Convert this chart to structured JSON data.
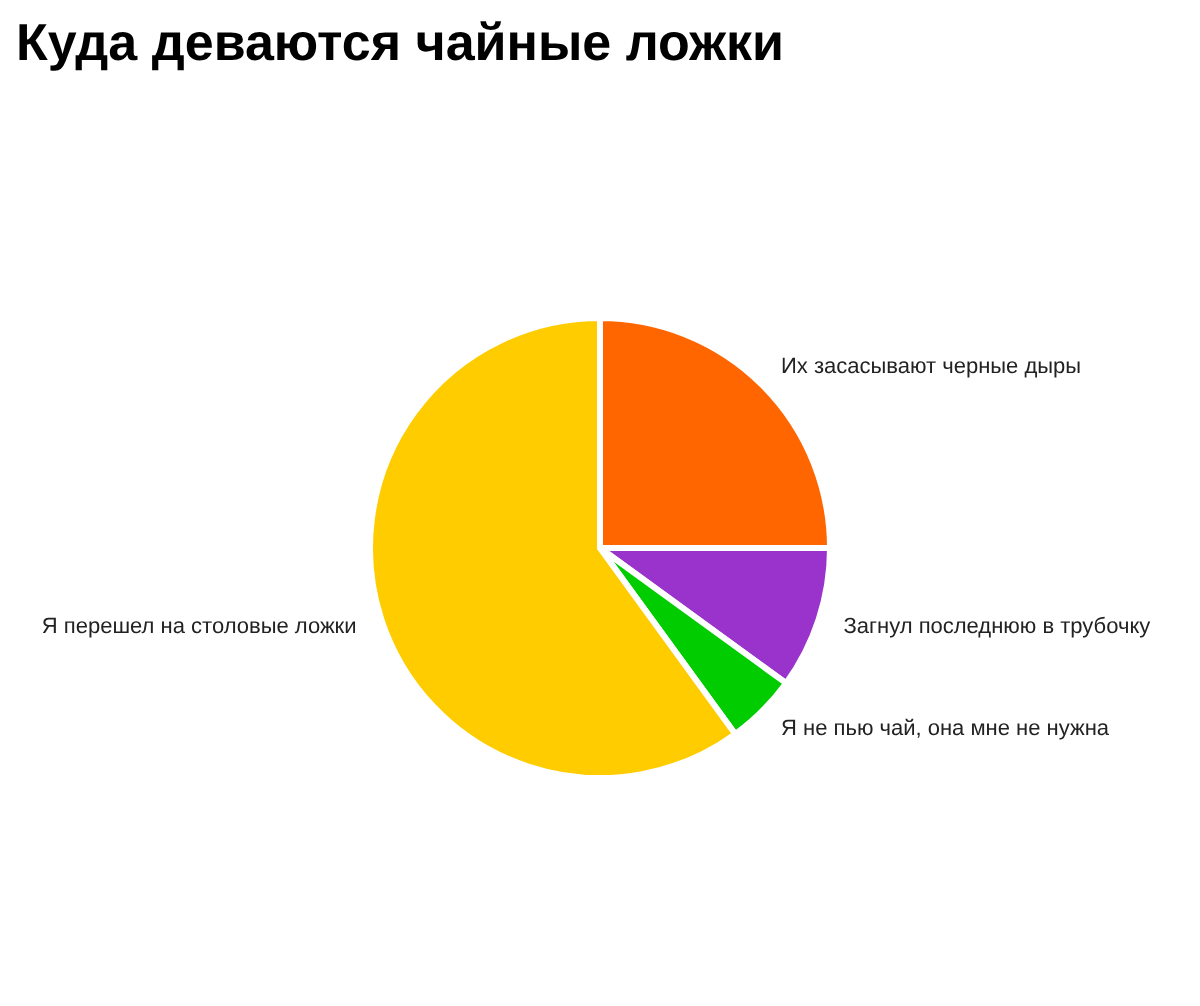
{
  "chart_data": {
    "type": "pie",
    "title": "Куда деваются чайные ложки",
    "categories": [
      "Их засасывают черные дыры",
      "Загнул последнюю в трубочку",
      "Я не пью чай, она мне не нужна",
      "Я перешел на столовые ложки"
    ],
    "values": [
      25,
      10,
      5,
      60
    ],
    "colors": [
      "#ff6600",
      "#9933cc",
      "#00cc00",
      "#ffcc00"
    ]
  }
}
